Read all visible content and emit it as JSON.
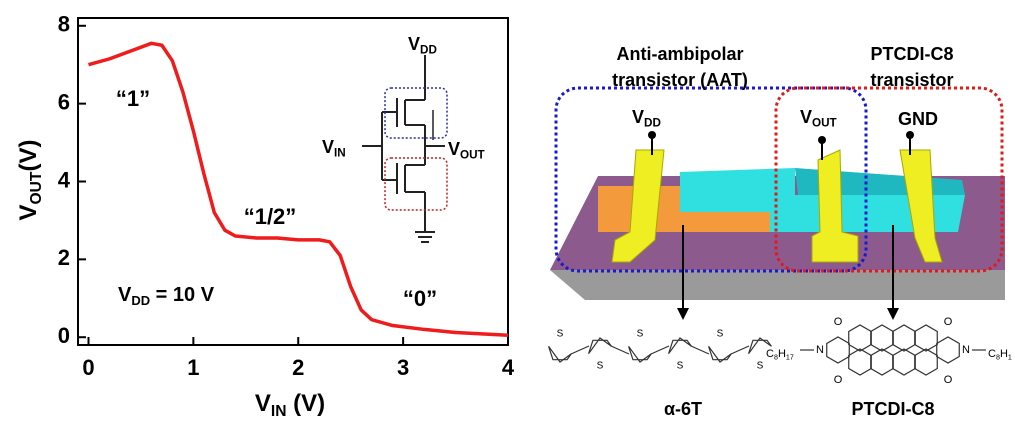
{
  "chart_data": {
    "type": "line",
    "x": [
      0,
      0.2,
      0.4,
      0.6,
      0.7,
      0.8,
      0.9,
      1.0,
      1.1,
      1.2,
      1.3,
      1.4,
      1.6,
      1.8,
      2.0,
      2.2,
      2.3,
      2.4,
      2.5,
      2.6,
      2.7,
      2.9,
      3.2,
      3.5,
      4.0
    ],
    "values": [
      7.0,
      7.15,
      7.35,
      7.55,
      7.5,
      7.1,
      6.3,
      5.3,
      4.2,
      3.2,
      2.75,
      2.6,
      2.55,
      2.55,
      2.5,
      2.5,
      2.45,
      2.1,
      1.3,
      0.7,
      0.45,
      0.3,
      0.2,
      0.12,
      0.05
    ],
    "color": "#ee1c1c",
    "xlim": [
      -0.1,
      4
    ],
    "ylim": [
      -0.2,
      8.2
    ],
    "xticks": [
      0,
      1,
      2,
      3,
      4
    ],
    "yticks": [
      0,
      2,
      4,
      6,
      8
    ],
    "xlabel": {
      "main": "V",
      "sub": "IN",
      "rest": " (V)"
    },
    "ylabel": {
      "main": "V",
      "sub": "OUT",
      "rest": "(V)"
    },
    "annotations": [
      "“1”",
      "“1/2”",
      "“0”"
    ],
    "vdd_note": {
      "main": "V",
      "sub": "DD",
      "rest": " = 10 V"
    },
    "circuit": {
      "vdd": {
        "main": "V",
        "sub": "DD"
      },
      "vin": {
        "main": "V",
        "sub": "IN"
      },
      "vout": {
        "main": "V",
        "sub": "OUT"
      }
    }
  },
  "diagram": {
    "aat_label": [
      "Anti-ambipolar",
      "transistor (AAT)"
    ],
    "ptcdi_label": [
      "PTCDI-C8",
      "transistor"
    ],
    "vdd": {
      "main": "V",
      "sub": "DD"
    },
    "vout": {
      "main": "V",
      "sub": "OUT"
    },
    "gnd": "GND",
    "molecule_1": {
      "name": "α-6T",
      "atoms": [
        "S",
        "S",
        "S",
        "S",
        "S",
        "S"
      ]
    },
    "molecule_2": {
      "name": "PTCDI-C8",
      "atoms": [
        "O",
        "O",
        "O",
        "O",
        "N",
        "N"
      ],
      "chain_left": {
        "main": "C",
        "sub": "8",
        "mid": "H",
        "sub2": "17"
      },
      "chain_right": {
        "main": "C",
        "sub": "8",
        "mid": "H",
        "sub2": "1"
      }
    }
  }
}
